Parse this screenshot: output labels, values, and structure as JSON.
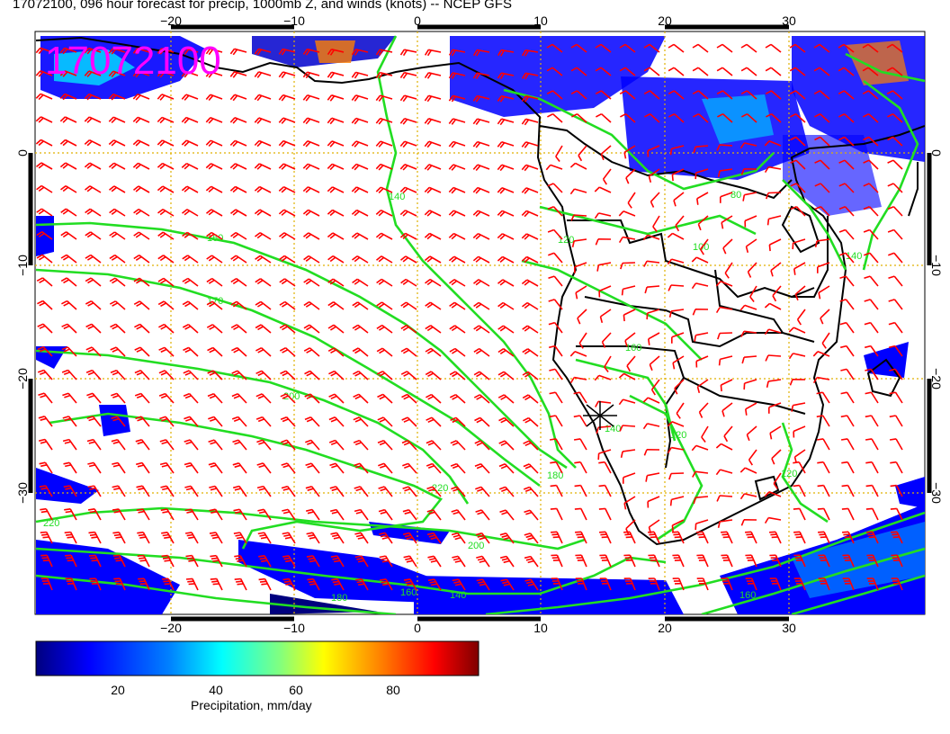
{
  "title": "17072100, 096 hour forecast for precip, 1000mb Z, and winds (knots) -- NCEP GFS",
  "stamp": "17072100",
  "x_ticks": [
    "−20",
    "−10",
    "0",
    "10",
    "20",
    "30"
  ],
  "y_ticks": [
    "0",
    "−10",
    "−20",
    "−30"
  ],
  "colorbar": {
    "label": "Precipitation, mm/day",
    "ticks": [
      "20",
      "40",
      "60",
      "80"
    ],
    "colors": [
      "#00007f",
      "#0000ff",
      "#0080ff",
      "#00ffff",
      "#80ff80",
      "#ffff00",
      "#ff8000",
      "#ff0000",
      "#7f0000"
    ]
  },
  "contour_labels": [
    "160",
    "170",
    "140",
    "200",
    "220",
    "180",
    "200",
    "220",
    "160",
    "180",
    "140",
    "120",
    "100",
    "160",
    "140",
    "120",
    "80",
    "160",
    "140",
    "120"
  ],
  "colors": {
    "coastline": "#000000",
    "contour": "#22dd22",
    "wind_barb": "#ff0000",
    "grid": "#e0b000",
    "stamp": "#ff00ff"
  }
}
